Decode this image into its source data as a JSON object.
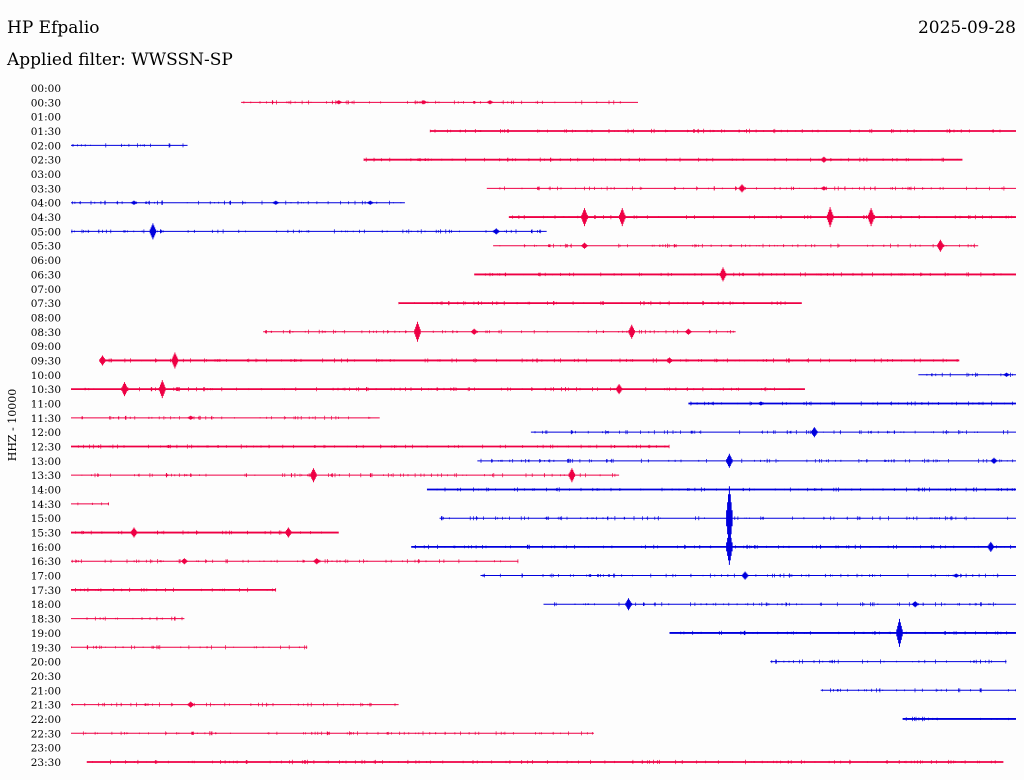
{
  "station": "HP Efpalio",
  "date": "2025-09-28",
  "filter_text": "Applied filter: WWSSN-SP",
  "chart_data": {
    "type": "line",
    "ylabel": "HHZ - 10000",
    "colors": {
      "red": "#ee0044",
      "blue": "#0000dd"
    },
    "rows": [
      {
        "label": "00:00",
        "color": "blue",
        "start": null,
        "end": null
      },
      {
        "label": "00:30",
        "color": "red",
        "start": 5.4,
        "end": 18.0,
        "thick": 1,
        "spikes": [
          [
            8.5,
            2
          ],
          [
            11.2,
            2
          ],
          [
            13.3,
            2
          ]
        ]
      },
      {
        "label": "01:00",
        "color": "blue",
        "start": null,
        "end": null
      },
      {
        "label": "01:30",
        "color": "red",
        "start": 11.4,
        "end": 30.0,
        "thick": 2,
        "spikes": []
      },
      {
        "label": "02:00",
        "color": "blue",
        "start": 0.0,
        "end": 3.7,
        "thick": 1,
        "spikes": []
      },
      {
        "label": "02:30",
        "color": "red",
        "start": 9.3,
        "end": 28.3,
        "thick": 2,
        "spikes": [
          [
            23.9,
            3
          ]
        ]
      },
      {
        "label": "03:00",
        "color": "blue",
        "start": null,
        "end": null
      },
      {
        "label": "03:30",
        "color": "red",
        "start": 13.2,
        "end": 30.0,
        "thick": 1,
        "spikes": [
          [
            21.3,
            4
          ],
          [
            23.9,
            2
          ]
        ]
      },
      {
        "label": "04:00",
        "color": "blue",
        "start": 0.0,
        "end": 10.6,
        "thick": 1,
        "spikes": [
          [
            2.0,
            2
          ],
          [
            6.5,
            2
          ],
          [
            9.5,
            2
          ]
        ]
      },
      {
        "label": "04:30",
        "color": "red",
        "start": 13.9,
        "end": 30.0,
        "thick": 2,
        "spikes": [
          [
            16.3,
            9
          ],
          [
            17.5,
            9
          ],
          [
            24.1,
            10
          ],
          [
            25.4,
            9
          ]
        ]
      },
      {
        "label": "05:00",
        "color": "blue",
        "start": 0.0,
        "end": 15.1,
        "thick": 1,
        "spikes": [
          [
            2.6,
            8
          ],
          [
            13.5,
            3
          ]
        ]
      },
      {
        "label": "05:30",
        "color": "red",
        "start": 13.4,
        "end": 28.8,
        "thick": 1,
        "spikes": [
          [
            16.3,
            3
          ],
          [
            27.6,
            6
          ]
        ]
      },
      {
        "label": "06:00",
        "color": "blue",
        "start": null,
        "end": null
      },
      {
        "label": "06:30",
        "color": "red",
        "start": 12.8,
        "end": 30.0,
        "thick": 2,
        "spikes": [
          [
            20.7,
            7
          ]
        ]
      },
      {
        "label": "07:00",
        "color": "blue",
        "start": null,
        "end": null
      },
      {
        "label": "07:30",
        "color": "red",
        "start": 10.4,
        "end": 23.2,
        "thick": 2,
        "spikes": []
      },
      {
        "label": "08:00",
        "color": "blue",
        "start": null,
        "end": null
      },
      {
        "label": "08:30",
        "color": "red",
        "start": 6.1,
        "end": 21.1,
        "thick": 1,
        "spikes": [
          [
            11.0,
            10
          ],
          [
            12.8,
            3
          ],
          [
            17.8,
            7
          ],
          [
            19.6,
            3
          ]
        ]
      },
      {
        "label": "09:00",
        "color": "blue",
        "start": null,
        "end": null
      },
      {
        "label": "09:30",
        "color": "red",
        "start": 0.9,
        "end": 28.2,
        "thick": 2,
        "spikes": [
          [
            1.0,
            5
          ],
          [
            3.3,
            8
          ],
          [
            19.0,
            3
          ]
        ]
      },
      {
        "label": "10:00",
        "color": "blue",
        "start": 26.9,
        "end": 30.0,
        "thick": 1,
        "spikes": [
          [
            29.7,
            2
          ]
        ]
      },
      {
        "label": "10:30",
        "color": "red",
        "start": 0.0,
        "end": 23.3,
        "thick": 2,
        "spikes": [
          [
            1.7,
            7
          ],
          [
            2.9,
            9
          ],
          [
            17.4,
            5
          ]
        ]
      },
      {
        "label": "11:00",
        "color": "blue",
        "start": 19.6,
        "end": 30.0,
        "thick": 2,
        "spikes": [
          [
            21.9,
            2
          ]
        ]
      },
      {
        "label": "11:30",
        "color": "red",
        "start": 0.0,
        "end": 9.8,
        "thick": 1,
        "spikes": [
          [
            3.8,
            2
          ]
        ]
      },
      {
        "label": "12:00",
        "color": "blue",
        "start": 14.6,
        "end": 30.0,
        "thick": 1,
        "spikes": [
          [
            23.6,
            5
          ]
        ]
      },
      {
        "label": "12:30",
        "color": "red",
        "start": 0.0,
        "end": 19.0,
        "thick": 2,
        "spikes": []
      },
      {
        "label": "13:00",
        "color": "blue",
        "start": 12.9,
        "end": 30.0,
        "thick": 1,
        "spikes": [
          [
            20.9,
            7
          ],
          [
            29.3,
            3
          ]
        ]
      },
      {
        "label": "13:30",
        "color": "red",
        "start": 0.0,
        "end": 17.4,
        "thick": 1,
        "spikes": [
          [
            7.7,
            7
          ],
          [
            15.9,
            7
          ]
        ]
      },
      {
        "label": "14:00",
        "color": "blue",
        "start": 11.3,
        "end": 30.0,
        "thick": 2,
        "spikes": []
      },
      {
        "label": "14:30",
        "color": "red",
        "start": 0.0,
        "end": 1.2,
        "thick": 1,
        "spikes": []
      },
      {
        "label": "15:00",
        "color": "blue",
        "start": 11.7,
        "end": 30.0,
        "thick": 1,
        "spikes": [
          [
            20.9,
            32
          ]
        ]
      },
      {
        "label": "15:30",
        "color": "red",
        "start": 0.0,
        "end": 8.5,
        "thick": 2,
        "spikes": [
          [
            2.0,
            5
          ],
          [
            6.9,
            5
          ]
        ]
      },
      {
        "label": "16:00",
        "color": "blue",
        "start": 10.8,
        "end": 30.0,
        "thick": 2,
        "spikes": [
          [
            20.9,
            18
          ],
          [
            29.2,
            5
          ]
        ]
      },
      {
        "label": "16:30",
        "color": "red",
        "start": 0.0,
        "end": 14.2,
        "thick": 1,
        "spikes": [
          [
            3.6,
            3
          ],
          [
            7.8,
            3
          ]
        ]
      },
      {
        "label": "17:00",
        "color": "blue",
        "start": 13.0,
        "end": 30.0,
        "thick": 1,
        "spikes": [
          [
            21.4,
            4
          ],
          [
            28.1,
            2
          ]
        ]
      },
      {
        "label": "17:30",
        "color": "red",
        "start": 0.0,
        "end": 6.5,
        "thick": 2,
        "spikes": []
      },
      {
        "label": "18:00",
        "color": "blue",
        "start": 15.0,
        "end": 30.0,
        "thick": 1,
        "spikes": [
          [
            17.7,
            6
          ],
          [
            26.8,
            3
          ]
        ]
      },
      {
        "label": "18:30",
        "color": "red",
        "start": 0.0,
        "end": 3.6,
        "thick": 1,
        "spikes": []
      },
      {
        "label": "19:00",
        "color": "blue",
        "start": 19.0,
        "end": 30.0,
        "thick": 2,
        "spikes": [
          [
            26.3,
            14
          ]
        ]
      },
      {
        "label": "19:30",
        "color": "red",
        "start": 0.0,
        "end": 7.5,
        "thick": 1,
        "spikes": []
      },
      {
        "label": "20:00",
        "color": "blue",
        "start": 22.2,
        "end": 29.7,
        "thick": 1,
        "spikes": []
      },
      {
        "label": "20:30",
        "color": "blue",
        "start": null,
        "end": null
      },
      {
        "label": "21:00",
        "color": "blue",
        "start": 23.8,
        "end": 30.0,
        "thick": 1,
        "spikes": []
      },
      {
        "label": "21:30",
        "color": "red",
        "start": 0.0,
        "end": 10.4,
        "thick": 1,
        "spikes": [
          [
            3.8,
            3
          ]
        ]
      },
      {
        "label": "22:00",
        "color": "blue",
        "start": 26.4,
        "end": 30.0,
        "thick": 2,
        "spikes": []
      },
      {
        "label": "22:30",
        "color": "red",
        "start": 0.0,
        "end": 16.6,
        "thick": 1,
        "spikes": []
      },
      {
        "label": "23:00",
        "color": "blue",
        "start": null,
        "end": null
      },
      {
        "label": "23:30",
        "color": "red",
        "start": 0.5,
        "end": 29.6,
        "thick": 2,
        "spikes": []
      }
    ]
  }
}
